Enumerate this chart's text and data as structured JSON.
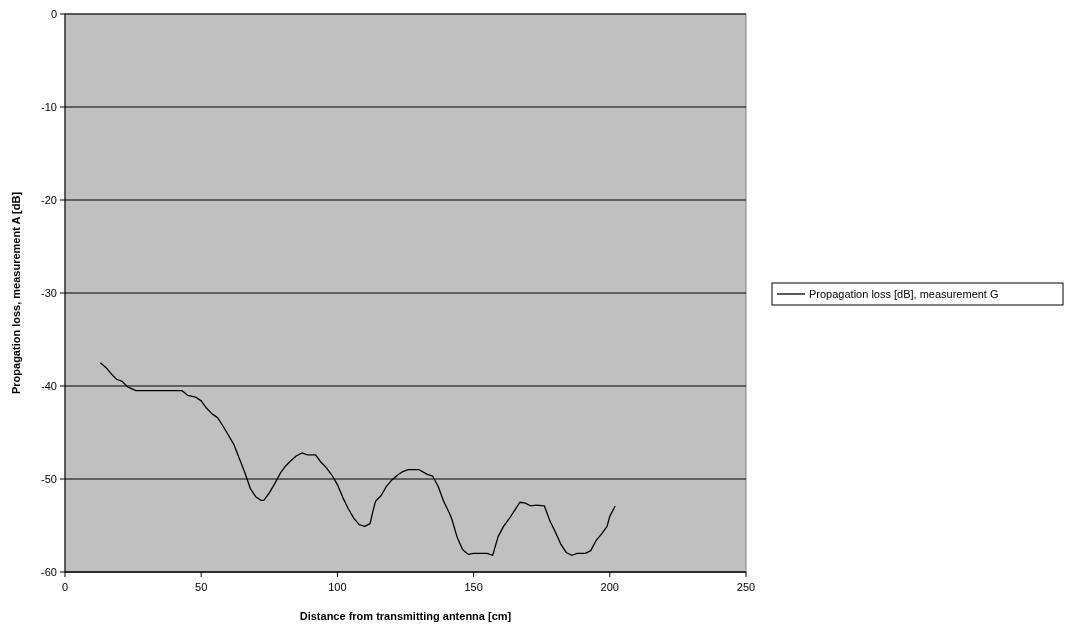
{
  "chart_data": {
    "type": "line",
    "xlabel": "Distance from transmitting antenna [cm]",
    "ylabel": "Propagation loss, measurement A  [dB]",
    "xlim": [
      0,
      250
    ],
    "xticks": [
      0,
      50,
      100,
      150,
      200,
      250
    ],
    "ylim": [
      -60,
      0
    ],
    "yticks": [
      -60,
      -50,
      -40,
      -30,
      -20,
      -10,
      0
    ],
    "grid": "y",
    "legend": "right",
    "marker": "none",
    "line_style": "solid",
    "x": [
      13,
      15,
      17,
      19,
      21,
      23,
      26,
      30,
      35,
      40,
      43,
      45,
      48,
      50,
      52,
      54,
      56,
      58,
      60,
      62,
      64,
      66,
      68,
      70,
      72,
      73,
      75,
      77,
      79,
      81,
      83,
      85,
      87,
      89,
      92,
      94,
      96,
      98,
      100,
      102,
      104,
      106,
      108,
      110,
      112,
      113,
      114,
      116,
      118,
      120,
      122,
      124,
      126,
      130,
      133,
      135,
      137,
      139,
      141,
      142,
      144,
      146,
      148,
      150,
      155,
      157,
      159,
      161,
      163,
      165,
      167,
      169,
      171,
      173,
      176,
      178,
      180,
      182,
      184,
      186,
      188,
      191,
      193,
      195,
      197,
      199,
      200,
      202
    ],
    "series": [
      {
        "name": "Propagation loss [dB], measurement G",
        "color": "#000000",
        "values": [
          -37.5,
          -38,
          -38.7,
          -39.3,
          -39.5,
          -40.1,
          -40.5,
          -40.5,
          -40.5,
          -40.5,
          -40.5,
          -41,
          -41.2,
          -41.6,
          -42.4,
          -43,
          -43.4,
          -44.3,
          -45.3,
          -46.3,
          -47.8,
          -49.3,
          -51,
          -51.9,
          -52.3,
          -52.3,
          -51.5,
          -50.5,
          -49.4,
          -48.6,
          -48,
          -47.5,
          -47.2,
          -47.4,
          -47.4,
          -48.2,
          -48.8,
          -49.6,
          -50.6,
          -52,
          -53.2,
          -54.2,
          -54.9,
          -55.1,
          -54.8,
          -53.5,
          -52.4,
          -51.8,
          -50.8,
          -50.1,
          -49.6,
          -49.2,
          -49,
          -49,
          -49.5,
          -49.7,
          -50.8,
          -52.4,
          -53.6,
          -54.3,
          -56.3,
          -57.6,
          -58.1,
          -58,
          -58,
          -58.2,
          -56.2,
          -55.1,
          -54.3,
          -53.4,
          -52.5,
          -52.6,
          -52.9,
          -52.8,
          -52.9,
          -54.5,
          -55.7,
          -57,
          -57.9,
          -58.2,
          -58,
          -58,
          -57.7,
          -56.6,
          -55.9,
          -55.1,
          -54,
          -52.9
        ]
      }
    ]
  }
}
